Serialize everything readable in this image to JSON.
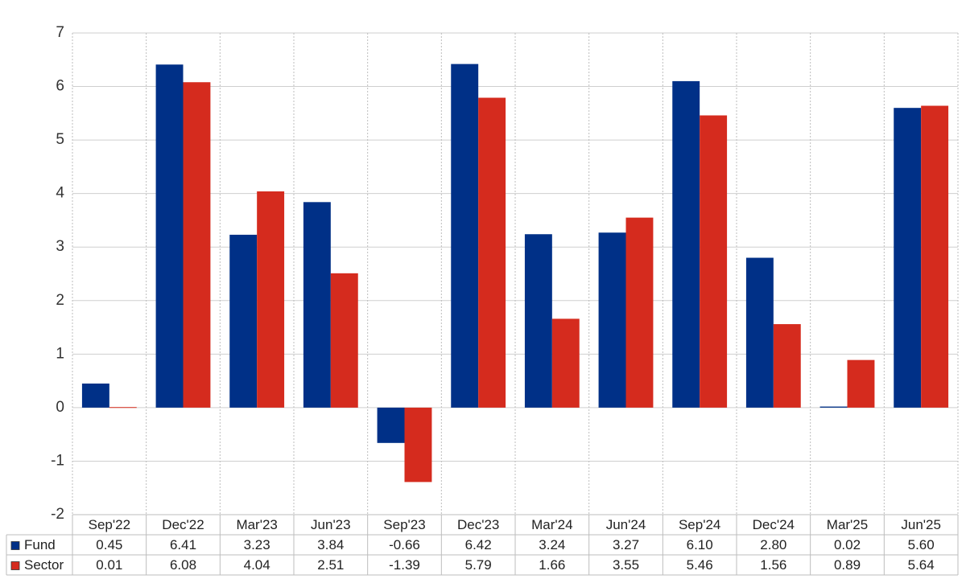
{
  "chart_data": {
    "type": "bar",
    "categories": [
      "Sep'22",
      "Dec'22",
      "Mar'23",
      "Jun'23",
      "Sep'23",
      "Dec'23",
      "Mar'24",
      "Jun'24",
      "Sep'24",
      "Dec'24",
      "Mar'25",
      "Jun'25"
    ],
    "series": [
      {
        "name": "Fund",
        "color": "#003087",
        "values": [
          0.45,
          6.41,
          3.23,
          3.84,
          -0.66,
          6.42,
          3.24,
          3.27,
          6.1,
          2.8,
          0.02,
          5.6
        ],
        "labels": [
          "0.45",
          "6.41",
          "3.23",
          "3.84",
          "-0.66",
          "6.42",
          "3.24",
          "3.27",
          "6.10",
          "2.80",
          "0.02",
          "5.60"
        ]
      },
      {
        "name": "Sector",
        "color": "#d52b1e",
        "values": [
          0.01,
          6.08,
          4.04,
          2.51,
          -1.39,
          5.79,
          1.66,
          3.55,
          5.46,
          1.56,
          0.89,
          5.64
        ],
        "labels": [
          "0.01",
          "6.08",
          "4.04",
          "2.51",
          "-1.39",
          "5.79",
          "1.66",
          "3.55",
          "5.46",
          "1.56",
          "0.89",
          "5.64"
        ]
      }
    ],
    "ylim": [
      -2,
      7
    ],
    "yticks": [
      "7",
      "6",
      "5",
      "4",
      "3",
      "2",
      "1",
      "0",
      "-1",
      "-2"
    ],
    "ytick_values": [
      7,
      6,
      5,
      4,
      3,
      2,
      1,
      0,
      -1,
      -2
    ],
    "negative_value_color": "#ff0000",
    "grid": true,
    "legend": "data-table"
  }
}
